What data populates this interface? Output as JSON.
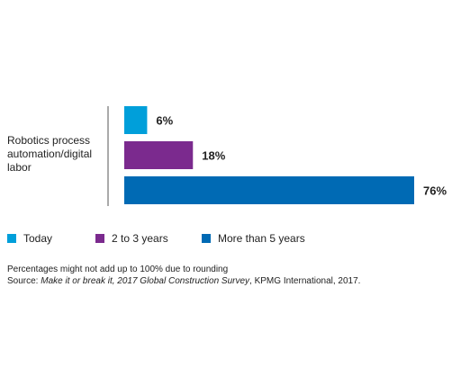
{
  "chart_data": {
    "type": "bar",
    "orientation": "horizontal",
    "title": "",
    "categories": [
      "Robotics process automation/digital labor"
    ],
    "series": [
      {
        "name": "Today",
        "values": [
          6
        ],
        "label": "6%",
        "color": "#009fda"
      },
      {
        "name": "2 to 3 years",
        "values": [
          18
        ],
        "label": "18%",
        "color": "#7b2a8e"
      },
      {
        "name": "More than 5 years",
        "values": [
          76
        ],
        "label": "76%",
        "color": "#006ab4"
      }
    ],
    "xlim": [
      0,
      76
    ],
    "grid": false,
    "legend": "bottom"
  },
  "legend": {
    "items": [
      {
        "label": "Today",
        "color": "#009fda"
      },
      {
        "label": "2 to 3 years",
        "color": "#7b2a8e"
      },
      {
        "label": "More than 5 years",
        "color": "#006ab4"
      }
    ]
  },
  "footnote": {
    "note": "Percentages might not add up to 100% due to rounding",
    "source_prefix": "Source: ",
    "source_title": "Make it or break it, 2017 Global Construction Survey",
    "source_suffix": ", KPMG International, 2017."
  }
}
